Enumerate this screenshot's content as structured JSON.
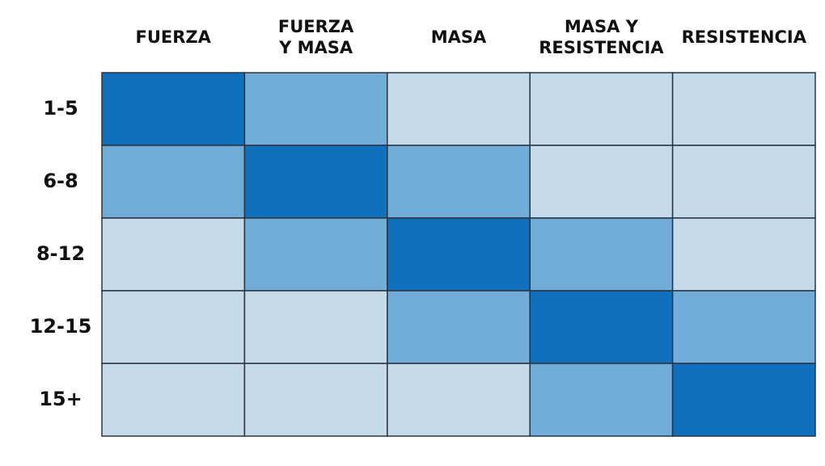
{
  "table": {
    "columns": [
      [
        "FUERZA"
      ],
      [
        "FUERZA",
        "Y MASA"
      ],
      [
        "MASA"
      ],
      [
        "MASA Y",
        "RESISTENCIA"
      ],
      [
        "RESISTENCIA"
      ]
    ],
    "rows": [
      "1-5",
      "6-8",
      "8-12",
      "12-15",
      "15+"
    ],
    "cell_colors": [
      [
        "#1170be",
        "#72acd9",
        "#c5dbec",
        "#c5dbec",
        "#c5dbec"
      ],
      [
        "#72acd9",
        "#1170be",
        "#72acd9",
        "#c5dbec",
        "#c5dbec"
      ],
      [
        "#c5dbec",
        "#72acd9",
        "#1170be",
        "#72acd9",
        "#c5dbec"
      ],
      [
        "#c5dbec",
        "#c5dbec",
        "#72acd9",
        "#1170be",
        "#72acd9"
      ],
      [
        "#c5dbec",
        "#c5dbec",
        "#c5dbec",
        "#72acd9",
        "#1170be"
      ]
    ],
    "border_color": "#2a3440"
  }
}
